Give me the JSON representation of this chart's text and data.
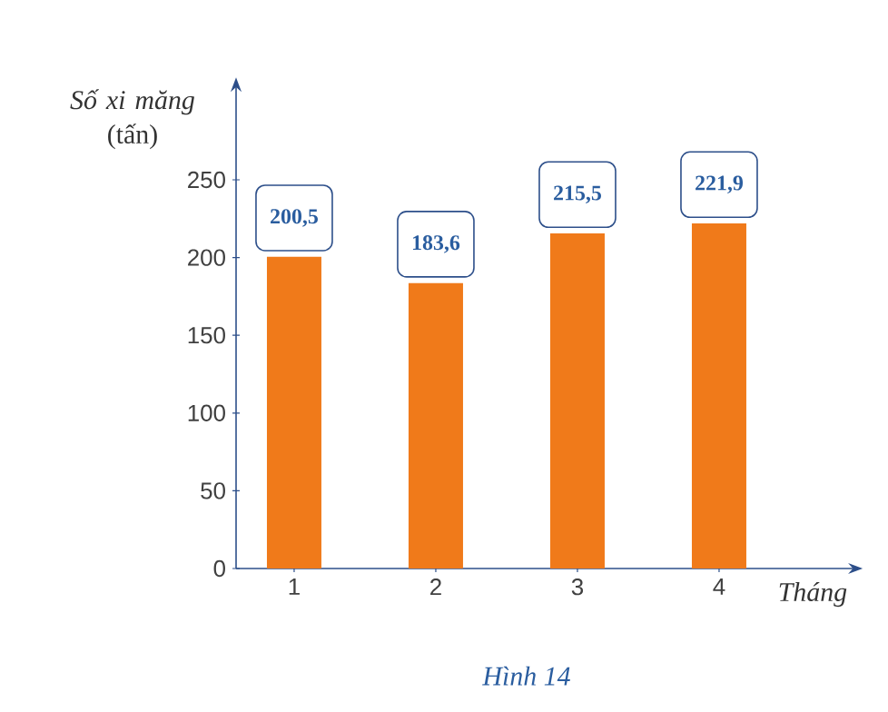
{
  "chart_data": {
    "type": "bar",
    "categories": [
      "1",
      "2",
      "3",
      "4"
    ],
    "values": [
      200.5,
      183.6,
      215.5,
      221.9
    ],
    "value_labels": [
      "200,5",
      "183,6",
      "215,5",
      "221,9"
    ],
    "color": "#f07a1a",
    "ylim": [
      0,
      310
    ],
    "yticks": [
      0,
      50,
      100,
      150,
      200,
      250
    ],
    "xlabel": "Tháng",
    "ylabel": "*Số xi măng* (tấn)",
    "annotations": [
      "Hình 14"
    ]
  }
}
